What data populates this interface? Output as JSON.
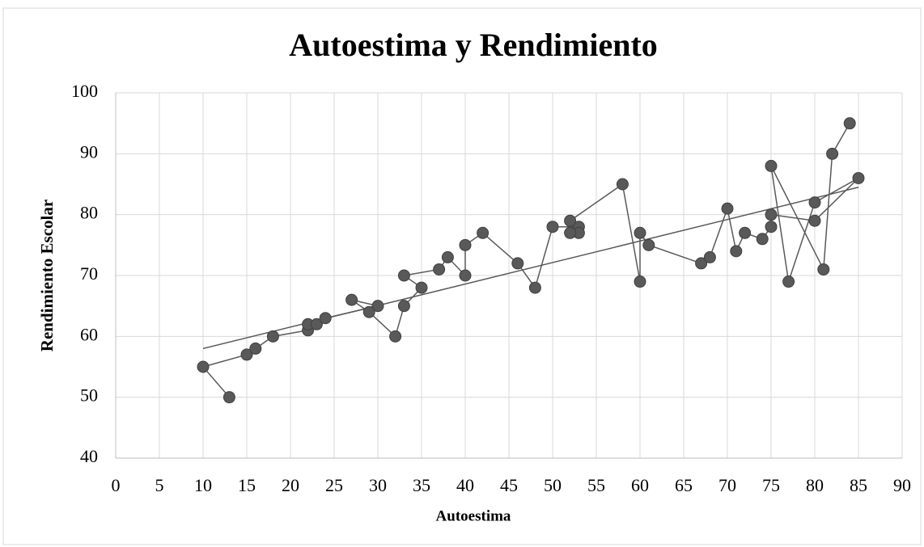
{
  "chart_data": {
    "type": "scatter",
    "title": "Autoestima y Rendimiento",
    "x_label": "Autoestima",
    "y_label": "Rendimiento Escolar",
    "xlim": [
      0,
      90
    ],
    "ylim": [
      40,
      100
    ],
    "xticks": [
      0,
      5,
      10,
      15,
      20,
      25,
      30,
      35,
      40,
      45,
      50,
      55,
      60,
      65,
      70,
      75,
      80,
      85,
      90
    ],
    "yticks": [
      40,
      50,
      60,
      70,
      80,
      90,
      100
    ],
    "grid": true,
    "series": [
      {
        "color": "#595959",
        "x": [
          13,
          10,
          15,
          16,
          18,
          22,
          22,
          23,
          24,
          30,
          27,
          29,
          32,
          33,
          35,
          33,
          37,
          38,
          40,
          40,
          42,
          46,
          48,
          50,
          53,
          53,
          52,
          52,
          58,
          60,
          60,
          61,
          67,
          68,
          70,
          71,
          72,
          74,
          75,
          75,
          80,
          85,
          80,
          77,
          75,
          81,
          82,
          84
        ],
        "values": [
          50,
          55,
          57,
          58,
          60,
          61,
          62,
          62,
          63,
          65,
          66,
          64,
          60,
          65,
          68,
          70,
          71,
          73,
          70,
          75,
          77,
          72,
          68,
          78,
          78,
          77,
          77,
          79,
          85,
          69,
          77,
          75,
          72,
          73,
          81,
          74,
          77,
          76,
          78,
          80,
          79,
          86,
          82,
          69,
          88,
          71,
          90,
          95
        ]
      }
    ],
    "trendline": {
      "color": "#595959",
      "x": [
        10,
        85
      ],
      "values": [
        58,
        84.5
      ]
    }
  }
}
